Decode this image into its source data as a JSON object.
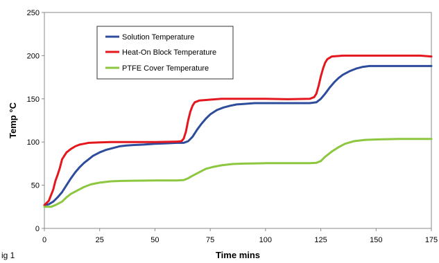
{
  "figure_label": "ig 1",
  "chart_data": {
    "type": "line",
    "title": "",
    "xlabel": "Time mins",
    "ylabel": "Temp °C",
    "xlim": [
      0,
      175
    ],
    "ylim": [
      0,
      250
    ],
    "xticks": [
      0,
      25,
      50,
      75,
      100,
      125,
      150,
      175
    ],
    "yticks": [
      0,
      50,
      100,
      150,
      200,
      250
    ],
    "grid": false,
    "legend_position": "top-left inside",
    "series": [
      {
        "name": "Solution Temperature",
        "color": "#2e4c9c",
        "x": [
          0,
          2,
          4,
          6,
          8,
          10,
          12,
          14,
          16,
          18,
          20,
          22,
          25,
          28,
          31,
          34,
          37,
          40,
          45,
          50,
          55,
          60,
          63,
          65,
          67,
          69,
          71,
          73,
          75,
          78,
          81,
          84,
          87,
          90,
          95,
          100,
          105,
          110,
          115,
          120,
          123,
          125,
          127,
          129,
          131,
          133,
          135,
          138,
          141,
          144,
          147,
          150,
          160,
          170,
          175
        ],
        "y": [
          27,
          28,
          31,
          36,
          42,
          50,
          58,
          65,
          71,
          76,
          80,
          84,
          88,
          91,
          93,
          95,
          96,
          96.5,
          97,
          98,
          98.5,
          99,
          99,
          101,
          106,
          114,
          121,
          127,
          132,
          137,
          140,
          142,
          143.5,
          144,
          145,
          145,
          145,
          145,
          145,
          145,
          146,
          150,
          156,
          163,
          169,
          174,
          178,
          182,
          185,
          187,
          188,
          188,
          188,
          188,
          188
        ]
      },
      {
        "name": "Heat-On Block Temperature",
        "color": "#e3171d",
        "x": [
          0,
          2,
          4,
          5,
          6,
          7,
          8,
          10,
          12,
          14,
          16,
          18,
          20,
          25,
          30,
          40,
          50,
          60,
          62,
          63,
          64,
          65,
          66,
          67,
          68,
          70,
          75,
          80,
          90,
          100,
          110,
          120,
          122,
          123,
          124,
          125,
          126,
          127,
          128,
          130,
          135,
          140,
          150,
          160,
          170,
          175
        ],
        "y": [
          27,
          32,
          45,
          55,
          62,
          70,
          80,
          88,
          92,
          95,
          97,
          98,
          99,
          99.5,
          100,
          100,
          100,
          100.5,
          101,
          104,
          112,
          125,
          135,
          142,
          146,
          148,
          149,
          150,
          150,
          150,
          149.5,
          150,
          152,
          156,
          165,
          176,
          185,
          192,
          196,
          199,
          200,
          200,
          200,
          200,
          200,
          199
        ]
      },
      {
        "name": "PTFE Cover Temperature",
        "color": "#8dc63f",
        "x": [
          0,
          3,
          5,
          8,
          10,
          12,
          15,
          18,
          21,
          25,
          30,
          35,
          40,
          50,
          60,
          63,
          65,
          67,
          70,
          73,
          76,
          80,
          85,
          90,
          100,
          110,
          120,
          123,
          125,
          127,
          130,
          133,
          136,
          140,
          145,
          150,
          160,
          170,
          175
        ],
        "y": [
          25,
          25,
          27,
          31,
          36,
          40,
          44,
          48,
          51,
          53,
          54.5,
          55,
          55.2,
          55.5,
          55.5,
          56,
          58,
          61,
          65,
          69,
          71,
          73,
          74.5,
          75,
          75.5,
          75.5,
          75.5,
          76,
          78,
          83,
          89,
          94,
          98,
          101,
          102.5,
          103,
          103.5,
          103.5,
          103.5
        ]
      }
    ]
  }
}
